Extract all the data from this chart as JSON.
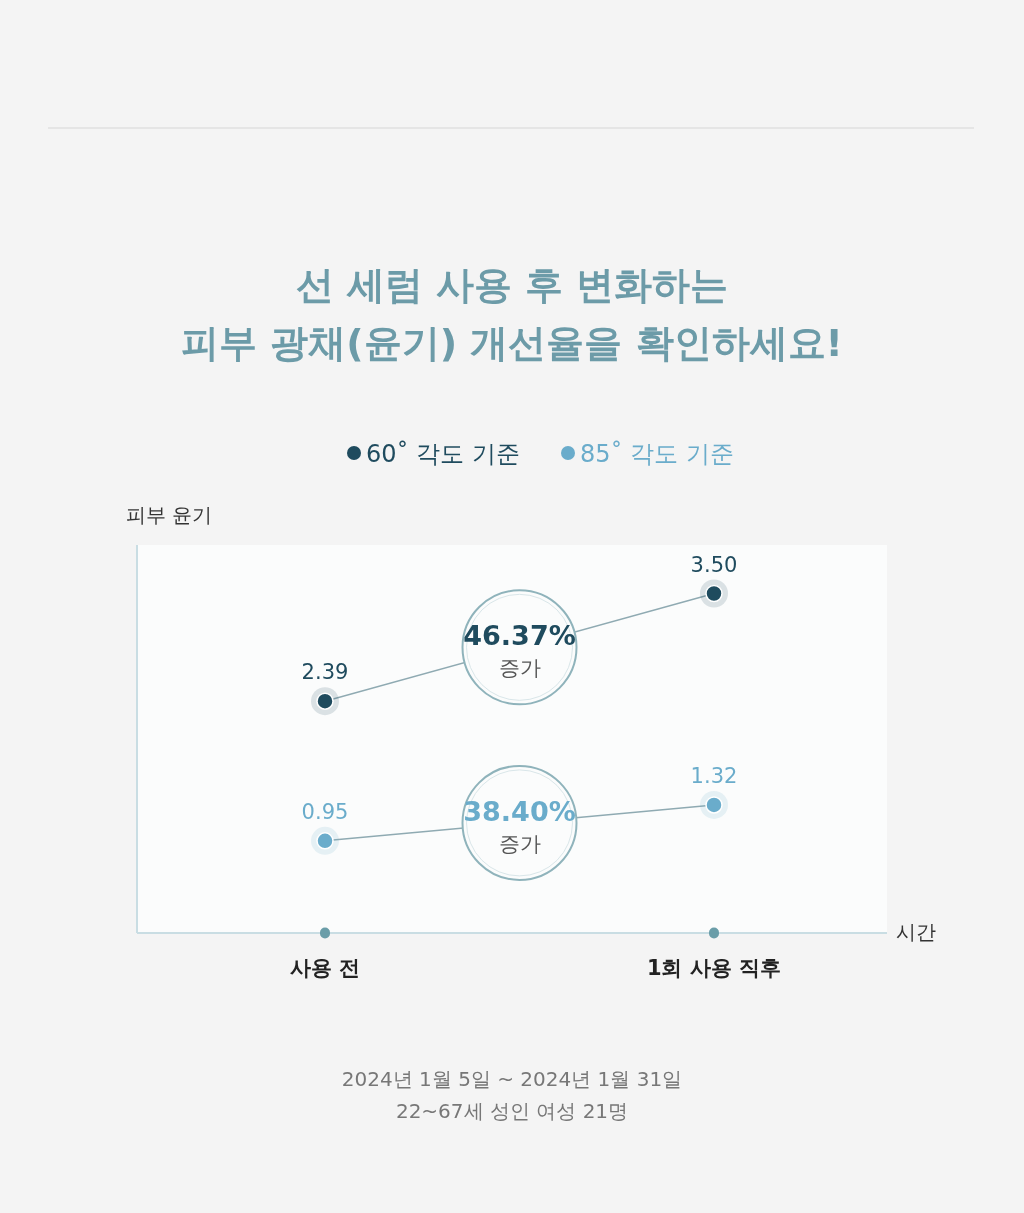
{
  "chart_data": {
    "type": "line",
    "title": "선 세럼 사용 후 변화하는\n피부 광채(윤기) 개선율을 확인하세요!",
    "xlabel": "시간",
    "ylabel": "피부 윤기",
    "categories": [
      "사용 전",
      "1회 사용 직후"
    ],
    "ylim": [
      0,
      4
    ],
    "tick_labels": "x",
    "legend": "top",
    "marker": "circle",
    "line_style": "solid",
    "grid": false,
    "series": [
      {
        "name": "60˚ 각도 기준",
        "color": "#1f4b5e",
        "values": [
          2.39,
          3.5
        ],
        "value_labels": [
          "2.39",
          "3.50"
        ]
      },
      {
        "name": "85˚ 각도 기준",
        "color": "#6aaccb",
        "values": [
          0.95,
          1.32
        ],
        "value_labels": [
          "0.95",
          "1.32"
        ]
      }
    ],
    "annotations": [
      "46.37% 증가",
      "38.40% 증가",
      "2024년 1월 5일 ~ 2024년 1월 31일",
      "22~67세 성인 여성 21명"
    ]
  }
}
